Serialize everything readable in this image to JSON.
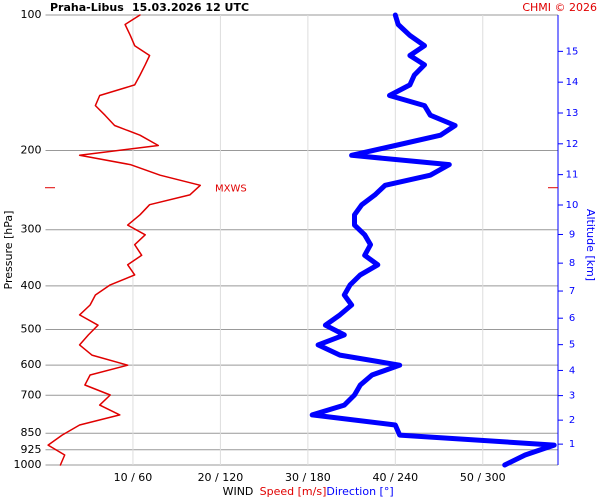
{
  "chart_data": {
    "type": "line",
    "title": "Praha-Libus",
    "subtitle": "15.03.2026 12 UTC",
    "credit": "CHMI © 2026",
    "ylabel": "Pressure [hPa]",
    "yscale": "log",
    "y_inverted": true,
    "ylim": [
      100,
      1000
    ],
    "yticks": [
      100,
      200,
      300,
      400,
      500,
      600,
      700,
      850,
      925,
      1000
    ],
    "grid": true,
    "xlabel": "WIND",
    "xlim": [
      0,
      58.6
    ],
    "x2lim": [
      0,
      351.6
    ],
    "xticks": [
      {
        "value": 10,
        "label": "10 / 60"
      },
      {
        "value": 20,
        "label": "20 / 120"
      },
      {
        "value": 30,
        "label": "30 / 180"
      },
      {
        "value": 40,
        "label": "40 / 240"
      },
      {
        "value": 50,
        "label": "50 / 300"
      }
    ],
    "y2label": "Altitude [km]",
    "y2scale": "standard-atmosphere",
    "y2ticks": [
      1,
      2,
      3,
      4,
      5,
      6,
      7,
      8,
      9,
      10,
      11,
      12,
      13,
      14,
      15
    ],
    "pressure": [
      100,
      105,
      111,
      117,
      123,
      129,
      136,
      143,
      151,
      159,
      167,
      176,
      185,
      195,
      205,
      215,
      227,
      239,
      251,
      264,
      278,
      293,
      308,
      324,
      342,
      359,
      378,
      398,
      419,
      441,
      464,
      489,
      514,
      541,
      570,
      600,
      631,
      664,
      699,
      736,
      774,
      815,
      858,
      903,
      950,
      1000
    ],
    "series": [
      {
        "name": "Speed [m/s]",
        "color": "#e00000",
        "values": [
          10.8,
          9.1,
          9.7,
          10.2,
          11.9,
          11.4,
          10.8,
          10.2,
          6.2,
          5.7,
          6.8,
          7.9,
          10.8,
          12.9,
          3.9,
          9.7,
          13.1,
          17.7,
          16.5,
          11.9,
          10.8,
          9.4,
          11.4,
          10.2,
          11.0,
          9.4,
          10.2,
          7.4,
          5.7,
          5.1,
          3.9,
          6.0,
          4.9,
          3.9,
          5.3,
          9.4,
          5.1,
          4.5,
          7.4,
          6.2,
          8.5,
          3.9,
          1.9,
          0.3,
          2.2,
          1.7
        ]
      },
      {
        "name": "Direction [°]",
        "color": "#0000ff",
        "axis": "x2",
        "values": [
          240,
          242,
          250,
          260,
          250,
          260,
          253,
          250,
          236,
          260,
          264,
          281,
          271,
          240,
          210,
          277,
          264,
          233,
          226,
          217,
          212,
          212,
          219,
          223,
          219,
          228,
          216,
          209,
          205,
          210,
          202,
          192,
          205,
          187,
          202,
          243,
          224,
          216,
          212,
          205,
          183,
          240,
          243,
          349,
          329,
          315
        ]
      }
    ],
    "annotations": [
      {
        "text": "MXWS",
        "y": 242
      }
    ]
  }
}
